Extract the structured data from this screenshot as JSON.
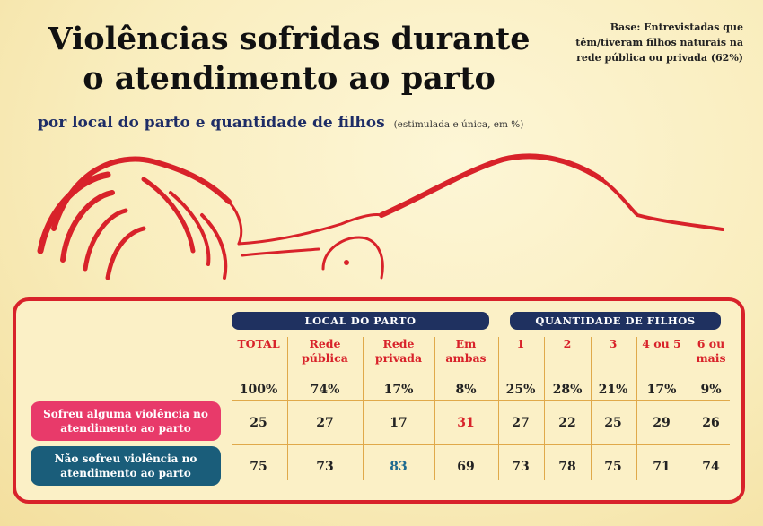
{
  "title_line1": "Violências sofridas durante",
  "title_line2": "o atendimento ao parto",
  "subtitle": "por local do parto e quantidade de filhos",
  "subtitle_note": "(estimulada e única, em %)",
  "base_note": "Base: Entrevistadas que têm/tiveram filhos naturais na rede pública ou privada (62%)",
  "colors": {
    "red": "#d8222a",
    "navy": "#1f3160",
    "pink": "#e83a6a",
    "teal": "#1a5d7a",
    "background": "#f9edbd"
  },
  "chart_data": {
    "type": "table",
    "column_groups": [
      {
        "label": "LOCAL DO PARTO",
        "columns": [
          "Rede pública",
          "Rede privada",
          "Em ambas"
        ]
      },
      {
        "label": "QUANTIDADE DE FILHOS",
        "columns": [
          "1",
          "2",
          "3",
          "4 ou 5",
          "6 ou mais"
        ]
      }
    ],
    "columns": [
      "TOTAL",
      "Rede pública",
      "Rede privada",
      "Em ambas",
      "1",
      "2",
      "3",
      "4 ou 5",
      "6 ou mais"
    ],
    "column_bases": [
      "100%",
      "74%",
      "17%",
      "8%",
      "25%",
      "28%",
      "21%",
      "17%",
      "9%"
    ],
    "rows": [
      {
        "label": "Sofreu alguma violência no atendimento ao parto",
        "values": [
          25,
          27,
          17,
          31,
          27,
          22,
          25,
          29,
          26
        ]
      },
      {
        "label": "Não sofreu violência no atendimento ao parto",
        "values": [
          75,
          73,
          83,
          69,
          73,
          78,
          75,
          71,
          74
        ]
      }
    ]
  }
}
